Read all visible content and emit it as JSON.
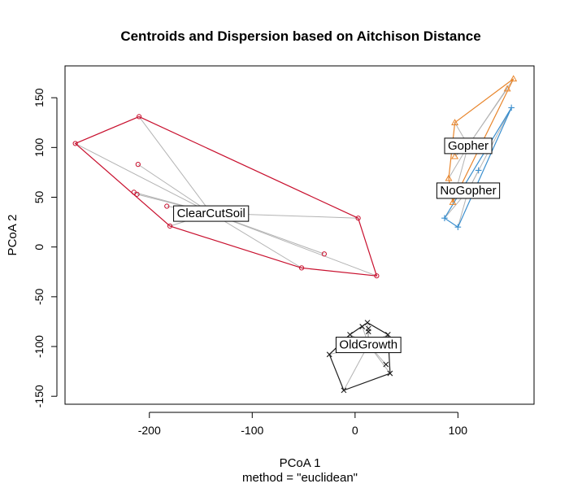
{
  "chart_data": {
    "type": "scatter",
    "title": "Centroids and Dispersion based on Aitchison Distance",
    "xlabel": "PCoA 1",
    "sub": "method = \"euclidean\"",
    "ylabel": "PCoA 2",
    "xlim": [
      -282,
      174
    ],
    "ylim": [
      -158,
      182
    ],
    "xticks": [
      -200,
      -100,
      0,
      100
    ],
    "yticks": [
      150,
      100,
      50,
      0,
      -50,
      -100,
      -150
    ],
    "xtick_labels": [
      "-200",
      "-100",
      "0",
      "100"
    ],
    "ytick_labels": [
      "150",
      "100",
      "50",
      "0",
      "-50",
      "-100",
      "-150"
    ],
    "grid": false,
    "legend": "none",
    "spider_color": "#b3b3b3",
    "groups": [
      {
        "name": "ClearCutSoil",
        "color": "#c8102e",
        "marker": "circle",
        "centroid": [
          -140,
          34
        ],
        "points": [
          [
            -272,
            104
          ],
          [
            -210,
            131
          ],
          [
            -211,
            83
          ],
          [
            -215,
            55
          ],
          [
            -212,
            53
          ],
          [
            -183,
            41
          ],
          [
            -180,
            21
          ],
          [
            3,
            29
          ],
          [
            -30,
            -7
          ],
          [
            -52,
            -21
          ],
          [
            21,
            -29
          ]
        ],
        "hull": [
          [
            -272,
            104
          ],
          [
            -210,
            131
          ],
          [
            3,
            29
          ],
          [
            21,
            -29
          ],
          [
            -52,
            -21
          ],
          [
            -180,
            21
          ]
        ]
      },
      {
        "name": "Gopher",
        "color": "#e8852b",
        "marker": "triangle",
        "centroid": [
          110,
          102
        ],
        "points": [
          [
            154,
            169
          ],
          [
            148,
            159
          ],
          [
            97,
            125
          ],
          [
            97,
            91
          ],
          [
            91,
            69
          ],
          [
            95,
            45
          ]
        ],
        "hull": [
          [
            154,
            169
          ],
          [
            97,
            125
          ],
          [
            91,
            69
          ],
          [
            95,
            45
          ]
        ]
      },
      {
        "name": "NoGopher",
        "color": "#3b8fce",
        "marker": "plus",
        "centroid": [
          110,
          57
        ],
        "points": [
          [
            152,
            140
          ],
          [
            120,
            77
          ],
          [
            100,
            20
          ],
          [
            87,
            29
          ]
        ],
        "hull": [
          [
            152,
            140
          ],
          [
            100,
            20
          ],
          [
            87,
            29
          ]
        ]
      },
      {
        "name": "OldGrowth",
        "color": "#1f1f1f",
        "marker": "x",
        "centroid": [
          13,
          -98
        ],
        "points": [
          [
            12,
            -76
          ],
          [
            7,
            -80
          ],
          [
            13,
            -82
          ],
          [
            13,
            -85
          ],
          [
            -5,
            -88
          ],
          [
            32,
            -88
          ],
          [
            30,
            -118
          ],
          [
            -25,
            -108
          ],
          [
            34,
            -127
          ],
          [
            -11,
            -144
          ]
        ],
        "hull": [
          [
            12,
            -76
          ],
          [
            32,
            -88
          ],
          [
            34,
            -127
          ],
          [
            -11,
            -144
          ],
          [
            -25,
            -108
          ],
          [
            -5,
            -88
          ]
        ]
      }
    ]
  }
}
